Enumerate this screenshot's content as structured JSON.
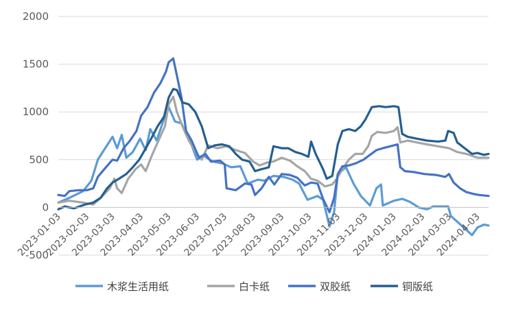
{
  "chart_data": {
    "type": "line",
    "title": "",
    "xlabel": "",
    "ylabel": "",
    "ylim": [
      -500,
      2000
    ],
    "yticks": [
      -500,
      0,
      500,
      1000,
      1500,
      2000
    ],
    "ytick_labels": [
      "-500",
      "0",
      "500",
      "1000",
      "1500",
      "2000"
    ],
    "xlim": [
      "2023-01-03",
      "2024-04-15"
    ],
    "xtick_labels": [
      "2023-01-03",
      "2023-02-03",
      "2023-03-03",
      "2023-04-03",
      "2023-05-03",
      "2023-06-03",
      "2023-07-03",
      "2023-08-03",
      "2023-09-03",
      "2023-10-03",
      "2023-11-03",
      "2023-12-03",
      "2024-01-03",
      "2024-02-03",
      "2024-03-03",
      "2024-04-03"
    ],
    "grid": true,
    "legend_position": "bottom",
    "series": [
      {
        "name": "木浆生活用纸",
        "color": "#5B9BD5",
        "points": [
          [
            "2023-01-03",
            50
          ],
          [
            "2023-01-15",
            100
          ],
          [
            "2023-01-30",
            170
          ],
          [
            "2023-02-08",
            280
          ],
          [
            "2023-02-15",
            500
          ],
          [
            "2023-02-25",
            650
          ],
          [
            "2023-03-03",
            740
          ],
          [
            "2023-03-08",
            620
          ],
          [
            "2023-03-13",
            760
          ],
          [
            "2023-03-18",
            520
          ],
          [
            "2023-03-25",
            580
          ],
          [
            "2023-04-02",
            720
          ],
          [
            "2023-04-08",
            600
          ],
          [
            "2023-04-13",
            820
          ],
          [
            "2023-04-20",
            700
          ],
          [
            "2023-04-27",
            900
          ],
          [
            "2023-05-03",
            1050
          ],
          [
            "2023-05-10",
            900
          ],
          [
            "2023-05-17",
            880
          ],
          [
            "2023-05-23",
            750
          ],
          [
            "2023-05-28",
            650
          ],
          [
            "2023-06-03",
            500
          ],
          [
            "2023-06-10",
            540
          ],
          [
            "2023-06-20",
            480
          ],
          [
            "2023-07-01",
            460
          ],
          [
            "2023-07-10",
            420
          ],
          [
            "2023-07-20",
            430
          ],
          [
            "2023-07-28",
            250
          ],
          [
            "2023-08-08",
            290
          ],
          [
            "2023-08-15",
            280
          ],
          [
            "2023-08-25",
            330
          ],
          [
            "2023-09-05",
            320
          ],
          [
            "2023-09-15",
            290
          ],
          [
            "2023-09-22",
            250
          ],
          [
            "2023-10-01",
            80
          ],
          [
            "2023-10-12",
            120
          ],
          [
            "2023-10-18",
            80
          ],
          [
            "2023-10-25",
            -200
          ],
          [
            "2023-10-30",
            -50
          ],
          [
            "2023-11-03",
            350
          ],
          [
            "2023-11-12",
            420
          ],
          [
            "2023-11-20",
            250
          ],
          [
            "2023-11-28",
            120
          ],
          [
            "2023-12-08",
            20
          ],
          [
            "2023-12-15",
            200
          ],
          [
            "2023-12-20",
            240
          ],
          [
            "2023-12-22",
            20
          ],
          [
            "2024-01-03",
            70
          ],
          [
            "2024-01-12",
            90
          ],
          [
            "2024-01-20",
            60
          ],
          [
            "2024-01-30",
            0
          ],
          [
            "2024-02-08",
            -20
          ],
          [
            "2024-02-15",
            10
          ],
          [
            "2024-02-22",
            10
          ],
          [
            "2024-03-02",
            10
          ],
          [
            "2024-03-05",
            -90
          ],
          [
            "2024-03-12",
            -150
          ],
          [
            "2024-03-20",
            -220
          ],
          [
            "2024-03-28",
            -290
          ],
          [
            "2024-04-03",
            -210
          ],
          [
            "2024-04-10",
            -180
          ],
          [
            "2024-04-15",
            -190
          ]
        ]
      },
      {
        "name": "白卡纸",
        "color": "#A5A5A5",
        "points": [
          [
            "2023-01-03",
            50
          ],
          [
            "2023-01-15",
            70
          ],
          [
            "2023-01-30",
            50
          ],
          [
            "2023-02-10",
            30
          ],
          [
            "2023-02-18",
            100
          ],
          [
            "2023-02-28",
            200
          ],
          [
            "2023-03-05",
            300
          ],
          [
            "2023-03-08",
            200
          ],
          [
            "2023-03-13",
            150
          ],
          [
            "2023-03-20",
            300
          ],
          [
            "2023-03-28",
            400
          ],
          [
            "2023-04-03",
            450
          ],
          [
            "2023-04-08",
            380
          ],
          [
            "2023-04-15",
            550
          ],
          [
            "2023-04-22",
            700
          ],
          [
            "2023-04-29",
            850
          ],
          [
            "2023-05-03",
            1080
          ],
          [
            "2023-05-08",
            1160
          ],
          [
            "2023-05-12",
            1000
          ],
          [
            "2023-05-18",
            850
          ],
          [
            "2023-05-25",
            700
          ],
          [
            "2023-06-02",
            570
          ],
          [
            "2023-06-08",
            500
          ],
          [
            "2023-06-15",
            650
          ],
          [
            "2023-06-25",
            620
          ],
          [
            "2023-07-05",
            640
          ],
          [
            "2023-07-15",
            600
          ],
          [
            "2023-07-25",
            570
          ],
          [
            "2023-08-03",
            480
          ],
          [
            "2023-08-10",
            440
          ],
          [
            "2023-08-18",
            470
          ],
          [
            "2023-08-25",
            480
          ],
          [
            "2023-09-03",
            520
          ],
          [
            "2023-09-12",
            490
          ],
          [
            "2023-09-20",
            430
          ],
          [
            "2023-09-28",
            380
          ],
          [
            "2023-10-05",
            300
          ],
          [
            "2023-10-12",
            280
          ],
          [
            "2023-10-20",
            220
          ],
          [
            "2023-10-28",
            240
          ],
          [
            "2023-11-02",
            300
          ],
          [
            "2023-11-08",
            400
          ],
          [
            "2023-11-15",
            500
          ],
          [
            "2023-11-22",
            560
          ],
          [
            "2023-11-30",
            560
          ],
          [
            "2023-12-06",
            640
          ],
          [
            "2023-12-10",
            750
          ],
          [
            "2023-12-16",
            790
          ],
          [
            "2023-12-25",
            780
          ],
          [
            "2024-01-03",
            800
          ],
          [
            "2024-01-07",
            840
          ],
          [
            "2024-01-10",
            680
          ],
          [
            "2024-01-18",
            700
          ],
          [
            "2024-01-28",
            680
          ],
          [
            "2024-02-08",
            660
          ],
          [
            "2024-02-20",
            640
          ],
          [
            "2024-03-03",
            620
          ],
          [
            "2024-03-12",
            580
          ],
          [
            "2024-03-22",
            560
          ],
          [
            "2024-04-03",
            520
          ],
          [
            "2024-04-15",
            520
          ]
        ]
      },
      {
        "name": "双胶纸",
        "color": "#4472C4",
        "points": [
          [
            "2023-01-03",
            130
          ],
          [
            "2023-01-10",
            120
          ],
          [
            "2023-01-15",
            170
          ],
          [
            "2023-01-25",
            180
          ],
          [
            "2023-02-03",
            180
          ],
          [
            "2023-02-10",
            200
          ],
          [
            "2023-02-15",
            320
          ],
          [
            "2023-02-22",
            400
          ],
          [
            "2023-03-03",
            500
          ],
          [
            "2023-03-08",
            490
          ],
          [
            "2023-03-15",
            620
          ],
          [
            "2023-03-22",
            700
          ],
          [
            "2023-03-29",
            800
          ],
          [
            "2023-04-03",
            960
          ],
          [
            "2023-04-10",
            1050
          ],
          [
            "2023-04-17",
            1200
          ],
          [
            "2023-04-24",
            1300
          ],
          [
            "2023-04-30",
            1420
          ],
          [
            "2023-05-03",
            1520
          ],
          [
            "2023-05-08",
            1560
          ],
          [
            "2023-05-12",
            1380
          ],
          [
            "2023-05-17",
            1150
          ],
          [
            "2023-05-22",
            800
          ],
          [
            "2023-05-28",
            700
          ],
          [
            "2023-06-05",
            520
          ],
          [
            "2023-06-12",
            560
          ],
          [
            "2023-06-18",
            480
          ],
          [
            "2023-06-28",
            490
          ],
          [
            "2023-07-03",
            450
          ],
          [
            "2023-07-05",
            200
          ],
          [
            "2023-07-15",
            180
          ],
          [
            "2023-07-25",
            250
          ],
          [
            "2023-08-01",
            240
          ],
          [
            "2023-08-05",
            130
          ],
          [
            "2023-08-12",
            200
          ],
          [
            "2023-08-20",
            320
          ],
          [
            "2023-08-26",
            240
          ],
          [
            "2023-09-03",
            350
          ],
          [
            "2023-09-12",
            340
          ],
          [
            "2023-09-20",
            310
          ],
          [
            "2023-09-28",
            230
          ],
          [
            "2023-10-05",
            260
          ],
          [
            "2023-10-12",
            250
          ],
          [
            "2023-10-18",
            90
          ],
          [
            "2023-10-25",
            -50
          ],
          [
            "2023-10-30",
            100
          ],
          [
            "2023-11-03",
            350
          ],
          [
            "2023-11-08",
            430
          ],
          [
            "2023-11-15",
            440
          ],
          [
            "2023-11-22",
            460
          ],
          [
            "2023-12-01",
            500
          ],
          [
            "2023-12-08",
            550
          ],
          [
            "2023-12-15",
            600
          ],
          [
            "2023-12-22",
            620
          ],
          [
            "2024-01-03",
            650
          ],
          [
            "2024-01-07",
            660
          ],
          [
            "2024-01-10",
            420
          ],
          [
            "2024-01-15",
            380
          ],
          [
            "2024-01-25",
            370
          ],
          [
            "2024-02-05",
            350
          ],
          [
            "2024-02-18",
            340
          ],
          [
            "2024-02-28",
            320
          ],
          [
            "2024-03-03",
            350
          ],
          [
            "2024-03-08",
            260
          ],
          [
            "2024-03-15",
            200
          ],
          [
            "2024-03-22",
            160
          ],
          [
            "2024-03-30",
            140
          ],
          [
            "2024-04-05",
            130
          ],
          [
            "2024-04-15",
            120
          ]
        ]
      },
      {
        "name": "铜版纸",
        "color": "#255E91",
        "points": [
          [
            "2023-01-03",
            -20
          ],
          [
            "2023-01-10",
            10
          ],
          [
            "2023-01-20",
            -10
          ],
          [
            "2023-02-01",
            30
          ],
          [
            "2023-02-10",
            50
          ],
          [
            "2023-02-18",
            100
          ],
          [
            "2023-02-25",
            200
          ],
          [
            "2023-03-03",
            260
          ],
          [
            "2023-03-10",
            300
          ],
          [
            "2023-03-18",
            350
          ],
          [
            "2023-03-25",
            420
          ],
          [
            "2023-04-01",
            500
          ],
          [
            "2023-04-07",
            600
          ],
          [
            "2023-04-14",
            720
          ],
          [
            "2023-04-21",
            850
          ],
          [
            "2023-04-28",
            950
          ],
          [
            "2023-05-03",
            1150
          ],
          [
            "2023-05-08",
            1240
          ],
          [
            "2023-05-12",
            1230
          ],
          [
            "2023-05-18",
            1100
          ],
          [
            "2023-05-25",
            1080
          ],
          [
            "2023-06-01",
            1000
          ],
          [
            "2023-06-08",
            850
          ],
          [
            "2023-06-15",
            620
          ],
          [
            "2023-06-22",
            650
          ],
          [
            "2023-06-30",
            660
          ],
          [
            "2023-07-08",
            640
          ],
          [
            "2023-07-15",
            560
          ],
          [
            "2023-07-22",
            500
          ],
          [
            "2023-07-30",
            480
          ],
          [
            "2023-08-05",
            380
          ],
          [
            "2023-08-12",
            400
          ],
          [
            "2023-08-20",
            420
          ],
          [
            "2023-08-25",
            640
          ],
          [
            "2023-09-03",
            620
          ],
          [
            "2023-09-10",
            620
          ],
          [
            "2023-09-18",
            580
          ],
          [
            "2023-09-25",
            560
          ],
          [
            "2023-10-02",
            530
          ],
          [
            "2023-10-05",
            690
          ],
          [
            "2023-10-10",
            560
          ],
          [
            "2023-10-18",
            400
          ],
          [
            "2023-10-22",
            300
          ],
          [
            "2023-10-28",
            330
          ],
          [
            "2023-11-03",
            660
          ],
          [
            "2023-11-08",
            800
          ],
          [
            "2023-11-15",
            820
          ],
          [
            "2023-11-22",
            800
          ],
          [
            "2023-11-28",
            850
          ],
          [
            "2023-12-03",
            920
          ],
          [
            "2023-12-10",
            1050
          ],
          [
            "2023-12-18",
            1060
          ],
          [
            "2023-12-25",
            1050
          ],
          [
            "2024-01-03",
            1060
          ],
          [
            "2024-01-08",
            1050
          ],
          [
            "2024-01-12",
            770
          ],
          [
            "2024-01-18",
            740
          ],
          [
            "2024-01-28",
            720
          ],
          [
            "2024-02-08",
            700
          ],
          [
            "2024-02-20",
            690
          ],
          [
            "2024-02-28",
            700
          ],
          [
            "2024-03-02",
            800
          ],
          [
            "2024-03-08",
            780
          ],
          [
            "2024-03-12",
            680
          ],
          [
            "2024-03-20",
            620
          ],
          [
            "2024-03-28",
            560
          ],
          [
            "2024-04-03",
            570
          ],
          [
            "2024-04-10",
            550
          ],
          [
            "2024-04-15",
            560
          ]
        ]
      }
    ]
  }
}
